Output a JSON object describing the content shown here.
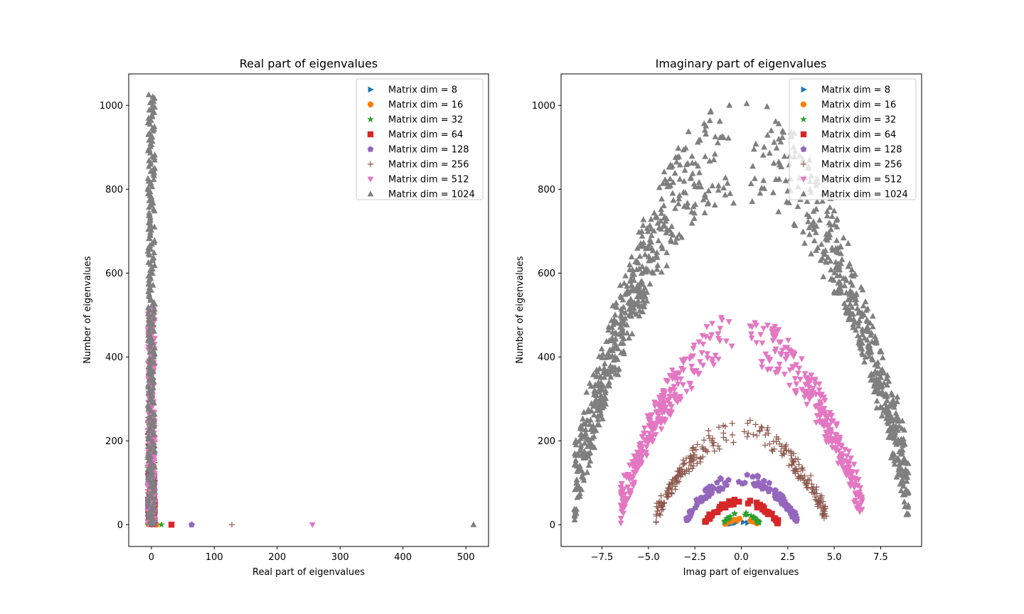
{
  "legend_labels": [
    "Matrix dim = 8",
    "Matrix dim = 16",
    "Matrix dim = 32",
    "Matrix dim = 64",
    "Matrix dim = 128",
    "Matrix dim = 256",
    "Matrix dim = 512",
    "Matrix dim = 1024"
  ],
  "chart_data": [
    {
      "type": "scatter",
      "title": "Real part of eigenvalues",
      "xlabel": "Real part of eigenvalues",
      "ylabel": "Number of eigenvalues",
      "xlim": [
        -36,
        536
      ],
      "ylim": [
        -52,
        1075
      ],
      "xticks": [
        0,
        100,
        200,
        300,
        400,
        500
      ],
      "yticks": [
        0,
        200,
        400,
        600,
        800,
        1000
      ],
      "grid": false,
      "legend": "top-right",
      "series": [
        {
          "name": "Matrix dim = 8",
          "marker": "triangle-right",
          "color": "#1f77b4",
          "count": 8,
          "outlier_x": 4
        },
        {
          "name": "Matrix dim = 16",
          "marker": "circle",
          "color": "#ff7f0e",
          "count": 16,
          "outlier_x": 8
        },
        {
          "name": "Matrix dim = 32",
          "marker": "star",
          "color": "#2ca02c",
          "count": 32,
          "outlier_x": 16
        },
        {
          "name": "Matrix dim = 64",
          "marker": "square",
          "color": "#d62728",
          "count": 64,
          "outlier_x": 32
        },
        {
          "name": "Matrix dim = 128",
          "marker": "pentagon",
          "color": "#9467bd",
          "count": 128,
          "outlier_x": 64
        },
        {
          "name": "Matrix dim = 256",
          "marker": "plus",
          "color": "#8c564b",
          "count": 256,
          "outlier_x": 128
        },
        {
          "name": "Matrix dim = 512",
          "marker": "triangle-down",
          "color": "#e377c2",
          "count": 512,
          "outlier_x": 256
        },
        {
          "name": "Matrix dim = 1024",
          "marker": "triangle-up",
          "color": "#7f7f7f",
          "count": 1024,
          "outlier_x": 512
        }
      ]
    },
    {
      "type": "scatter",
      "title": "Imaginary part of eigenvalues",
      "xlabel": "Imag part of eigenvalues",
      "ylabel": "Number of eigenvalues",
      "xlim": [
        -9.7,
        9.7
      ],
      "ylim": [
        -52,
        1075
      ],
      "xticks": [
        -7.5,
        -5.0,
        -2.5,
        0.0,
        2.5,
        5.0,
        7.5
      ],
      "xtick_labels": [
        "−7.5",
        "−5.0",
        "−2.5",
        "0.0",
        "2.5",
        "5.0",
        "7.5"
      ],
      "yticks": [
        0,
        200,
        400,
        600,
        800,
        1000
      ],
      "grid": false,
      "legend": "top-right",
      "series": [
        {
          "name": "Matrix dim = 8",
          "marker": "triangle-right",
          "color": "#1f77b4",
          "count": 8,
          "half_width": 0.7
        },
        {
          "name": "Matrix dim = 16",
          "marker": "circle",
          "color": "#ff7f0e",
          "count": 16,
          "half_width": 0.9
        },
        {
          "name": "Matrix dim = 32",
          "marker": "star",
          "color": "#2ca02c",
          "count": 32,
          "half_width": 1.0
        },
        {
          "name": "Matrix dim = 64",
          "marker": "square",
          "color": "#d62728",
          "count": 64,
          "half_width": 2.0
        },
        {
          "name": "Matrix dim = 128",
          "marker": "pentagon",
          "color": "#9467bd",
          "count": 128,
          "half_width": 3.0
        },
        {
          "name": "Matrix dim = 256",
          "marker": "plus",
          "color": "#8c564b",
          "count": 256,
          "half_width": 4.6
        },
        {
          "name": "Matrix dim = 512",
          "marker": "triangle-down",
          "color": "#e377c2",
          "count": 512,
          "half_width": 6.5
        },
        {
          "name": "Matrix dim = 1024",
          "marker": "triangle-up",
          "color": "#7f7f7f",
          "count": 1024,
          "half_width": 9.0
        }
      ]
    }
  ]
}
